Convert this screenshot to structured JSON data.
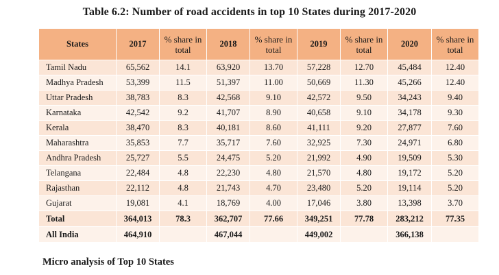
{
  "title": "Table 6.2: Number of road accidents in top 10 States during 2017-2020",
  "table": {
    "headers": [
      "States",
      "2017",
      "% share in total",
      "2018",
      "% share in total",
      "2019",
      "% share in total",
      "2020",
      "% share in total"
    ],
    "rows": [
      [
        "Tamil Nadu",
        "65,562",
        "14.1",
        "63,920",
        "13.70",
        "57,228",
        "12.70",
        "45,484",
        "12.40"
      ],
      [
        "Madhya Pradesh",
        "53,399",
        "11.5",
        "51,397",
        "11.00",
        "50,669",
        "11.30",
        "45,266",
        "12.40"
      ],
      [
        "Uttar Pradesh",
        "38,783",
        "8.3",
        "42,568",
        "9.10",
        "42,572",
        "9.50",
        "34,243",
        "9.40"
      ],
      [
        "Karnataka",
        "42,542",
        "9.2",
        "41,707",
        "8.90",
        "40,658",
        "9.10",
        "34,178",
        "9.30"
      ],
      [
        "Kerala",
        "38,470",
        "8.3",
        "40,181",
        "8.60",
        "41,111",
        "9.20",
        "27,877",
        "7.60"
      ],
      [
        "Maharashtra",
        "35,853",
        "7.7",
        "35,717",
        "7.60",
        "32,925",
        "7.30",
        "24,971",
        "6.80"
      ],
      [
        "Andhra Pradesh",
        "25,727",
        "5.5",
        "24,475",
        "5.20",
        "21,992",
        "4.90",
        "19,509",
        "5.30"
      ],
      [
        "Telangana",
        "22,484",
        "4.8",
        "22,230",
        "4.80",
        "21,570",
        "4.80",
        "19,172",
        "5.20"
      ],
      [
        "Rajasthan",
        "22,112",
        "4.8",
        "21,743",
        "4.70",
        "23,480",
        "5.20",
        "19,114",
        "5.20"
      ],
      [
        "Gujarat",
        "19,081",
        "4.1",
        "18,769",
        "4.00",
        "17,046",
        "3.80",
        "13,398",
        "3.70"
      ]
    ],
    "total": [
      "Total",
      "364,013",
      "78.3",
      "362,707",
      "77.66",
      "349,251",
      "77.78",
      "283,212",
      "77.35"
    ],
    "all_india": [
      "All India",
      "464,910",
      "",
      "467,044",
      "",
      "449,002",
      "",
      "366,138",
      ""
    ]
  },
  "section_heading": "Micro analysis of Top 10 States",
  "colors": {
    "header_bg": "#f4b183",
    "row_odd": "#fbe5d6",
    "row_even": "#fdf2ea"
  }
}
